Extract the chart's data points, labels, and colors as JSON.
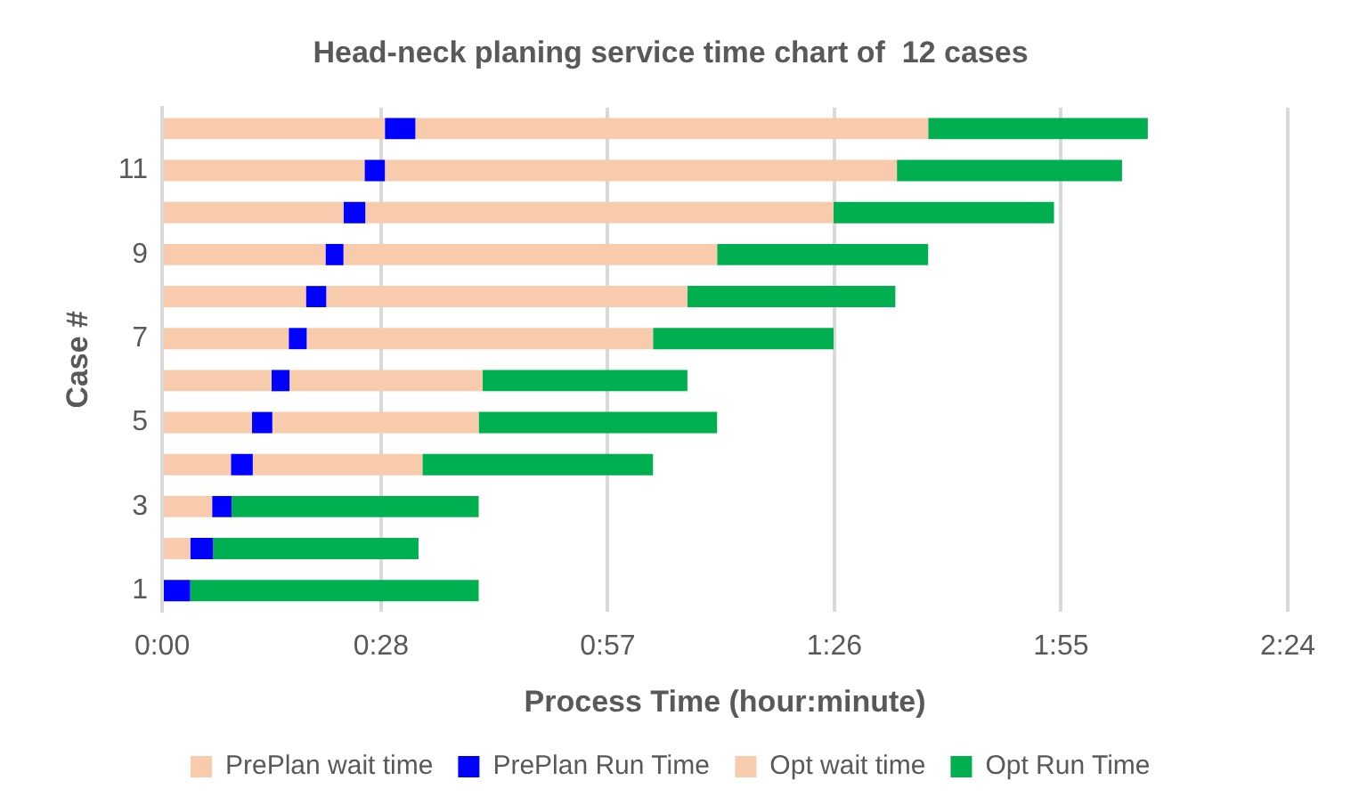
{
  "chart_data": {
    "type": "bar",
    "orientation": "horizontal",
    "stacked": true,
    "title": "Head-neck planing service time chart of  12 cases",
    "xlabel": "Process Time (hour:minute)",
    "ylabel": "Case #",
    "categories": [
      null,
      "11",
      null,
      "9",
      null,
      "7",
      null,
      "5",
      null,
      "3",
      null,
      "1"
    ],
    "series": [
      {
        "name": "PrePlan wait time",
        "color": "#f8cbad",
        "values": [
          28.5,
          25.9,
          23.2,
          20.9,
          18.4,
          16.2,
          14.0,
          11.5,
          8.8,
          6.4,
          3.6,
          0
        ]
      },
      {
        "name": "PrePlan Run Time",
        "color": "#0000ff",
        "values": [
          3.9,
          2.6,
          2.8,
          2.3,
          2.6,
          2.3,
          2.3,
          2.6,
          2.8,
          2.5,
          2.9,
          3.6
        ]
      },
      {
        "name": "Opt wait time",
        "color": "#f8cbad",
        "values": [
          65.6,
          65.5,
          59.9,
          47.8,
          46.2,
          44.3,
          24.7,
          26.4,
          21.7,
          0,
          0,
          0
        ]
      },
      {
        "name": "Opt Run Time",
        "color": "#00b050",
        "values": [
          28.1,
          28.8,
          28.2,
          27.0,
          26.6,
          23.1,
          26.2,
          30.5,
          29.5,
          31.6,
          26.3,
          36.9
        ]
      }
    ],
    "xlim": [
      0,
      144
    ],
    "xticks": [
      {
        "value": 0,
        "label": "0:00"
      },
      {
        "value": 28,
        "label": "0:28"
      },
      {
        "value": 57,
        "label": "0:57"
      },
      {
        "value": 86,
        "label": "1:26"
      },
      {
        "value": 115,
        "label": "1:55"
      },
      {
        "value": 144,
        "label": "2:24"
      }
    ],
    "grid": "x",
    "legend": "bottom"
  }
}
